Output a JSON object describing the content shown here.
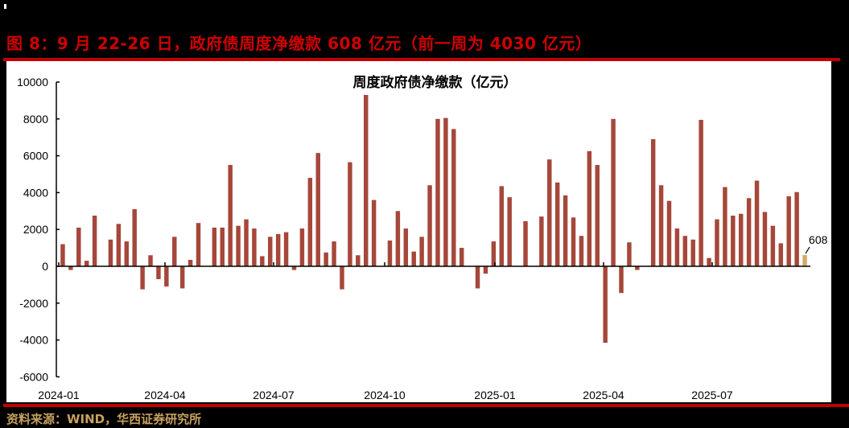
{
  "figure": {
    "title": "图 8：9 月 22-26 日，政府债周度净缴款 608 亿元（前一周为 4030 亿元）",
    "source": "资料来源：WIND，华西证券研究所"
  },
  "colors": {
    "bar": "#a5473a",
    "highlight_bar": "#d4aa6a",
    "title_red": "#d00000",
    "rule_red": "#c00000",
    "source_gold": "#c8a060"
  },
  "chart_data": {
    "type": "bar",
    "title": "周度政府债净缴款（亿元）",
    "xlabel": "",
    "ylabel": "",
    "ylim": [
      -6000,
      10000
    ],
    "yticks": [
      10000,
      8000,
      6000,
      4000,
      2000,
      0,
      -2000,
      -4000,
      -6000
    ],
    "xtick_labels": [
      "2024-01",
      "2024-04",
      "2024-07",
      "2024-10",
      "2025-01",
      "2025-04",
      "2025-07"
    ],
    "grid": false,
    "legend": false,
    "annotation": {
      "label": "608",
      "value": 608,
      "target": "last bar"
    },
    "values": [
      1200,
      -200,
      2100,
      300,
      2750,
      0,
      1450,
      2300,
      1350,
      3100,
      -1250,
      600,
      -700,
      -1100,
      1600,
      -1200,
      350,
      2350,
      0,
      2100,
      2100,
      5500,
      2200,
      2550,
      2050,
      550,
      1600,
      1750,
      1850,
      -200,
      2050,
      4800,
      6150,
      750,
      1350,
      -1250,
      5650,
      600,
      9300,
      3600,
      0,
      1400,
      3000,
      2050,
      800,
      1600,
      4400,
      8000,
      8050,
      7450,
      1000,
      0,
      -1200,
      -400,
      1350,
      4350,
      3750,
      0,
      2450,
      0,
      2700,
      5800,
      4550,
      3850,
      2650,
      1650,
      6250,
      5500,
      -4150,
      8000,
      -1450,
      1300,
      -200,
      0,
      6900,
      4400,
      3550,
      2050,
      1650,
      1450,
      7950,
      450,
      2550,
      4300,
      2750,
      2850,
      3700,
      4650,
      2950,
      2200,
      1250,
      3800,
      4030,
      608
    ]
  }
}
